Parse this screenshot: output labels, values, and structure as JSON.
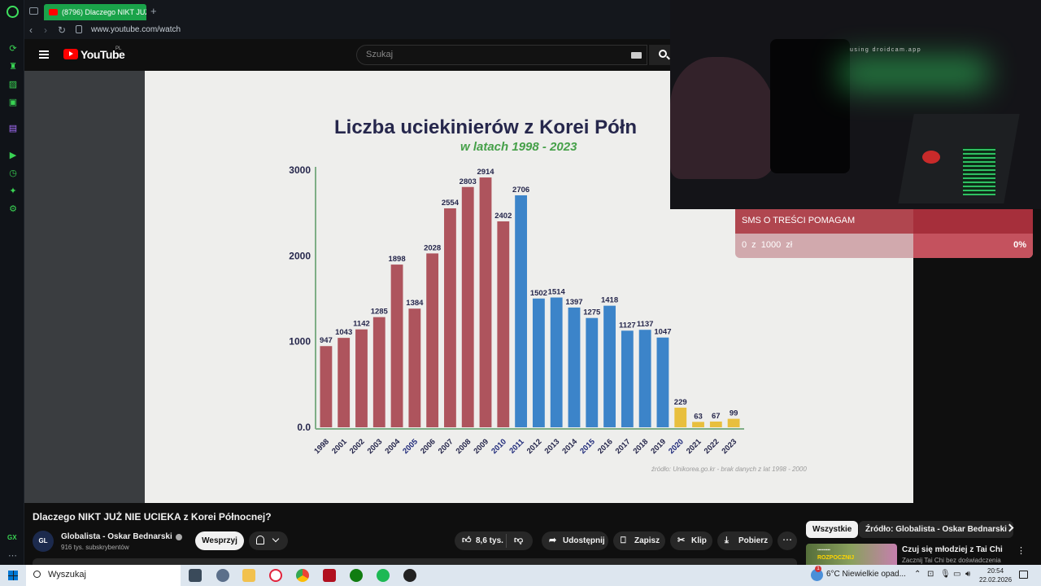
{
  "browser": {
    "tab_title": "(8796) Dlaczego NIKT JUŻ",
    "url": "www.youtube.com/watch"
  },
  "youtube": {
    "logo_text": "YouTube",
    "region": "PL",
    "search_placeholder": "Szukaj"
  },
  "chart_data": {
    "type": "bar",
    "title": "Liczba uciekinierów z Korei Półn",
    "subtitle": "w latach 1998 - 2023",
    "source": "źródło: Unikorea.go.kr - brak danych z lat 1998 - 2000",
    "categories": [
      "1998",
      "2001",
      "2002",
      "2003",
      "2004",
      "2005",
      "2006",
      "2007",
      "2008",
      "2009",
      "2010",
      "2011",
      "2012",
      "2013",
      "2014",
      "2015",
      "2016",
      "2017",
      "2018",
      "2019",
      "2020",
      "2021",
      "2022",
      "2023"
    ],
    "values": [
      947,
      1043,
      1142,
      1285,
      1898,
      1384,
      2028,
      2554,
      2803,
      2914,
      2402,
      2706,
      1502,
      1514,
      1397,
      1275,
      1418,
      1127,
      1137,
      1047,
      229,
      63,
      67,
      99
    ],
    "value_labels": [
      "947",
      "1043",
      "1142",
      "1285",
      "1898",
      "1384",
      "2028",
      "2554",
      "2803",
      "2914",
      "2402",
      "2706",
      "1502",
      "1514",
      "1397",
      "1275",
      "1418",
      "1127",
      "1137",
      "1047",
      "229",
      "63",
      "67",
      "99"
    ],
    "highlighted_years": [
      "2005",
      "2010",
      "2011",
      "2015",
      "2020"
    ],
    "groups": [
      {
        "from": "1998",
        "to": "2010",
        "color": "#a84650"
      },
      {
        "from": "2011",
        "to": "2019",
        "color": "#2d7bc6"
      },
      {
        "from": "2020",
        "to": "2023",
        "color": "#e7bb2e"
      }
    ],
    "yticks": [
      "0.0",
      "1000",
      "2000",
      "3000"
    ],
    "ylim": [
      0,
      3000
    ],
    "grid": false
  },
  "overlay": {
    "webcam_watermark": "using droidcam.app",
    "donation_label": "SMS O TREŚCI POMAGAM",
    "donation_amount": "0 z 1000 zł",
    "donation_percent": "0%",
    "donation_progress": 0
  },
  "video": {
    "title": "Dlaczego NIKT JUŻ NIE UCIEKA z Korei Północnej?",
    "channel_name": "Globalista - Oskar Bednarski",
    "channel_avatar": "GL",
    "subscribers": "916 tys. subskrybentów",
    "support_label": "Wesprzyj",
    "likes": "8,6 tys.",
    "share_label": "Udostępnij",
    "save_label": "Zapisz",
    "clip_label": "Klip",
    "download_label": "Pobierz"
  },
  "sidebar": {
    "chip_all": "Wszystkie",
    "chip_source": "Źródło: Globalista - Oskar Bednarski",
    "rec_title": "Czuj się młodziej z Tai Chi",
    "rec_subtitle": "Zacznij Tai Chi bez doświadczenia",
    "rec_thumb_caption": "ROZPOCZNIJ"
  },
  "taskbar": {
    "search_label": "Wyszukaj",
    "weather": "6°C  Niewielkie opad...",
    "notifications_badge": "1",
    "time": "20:54",
    "date": "22.02.2026"
  },
  "gx": {
    "label": "GX"
  }
}
